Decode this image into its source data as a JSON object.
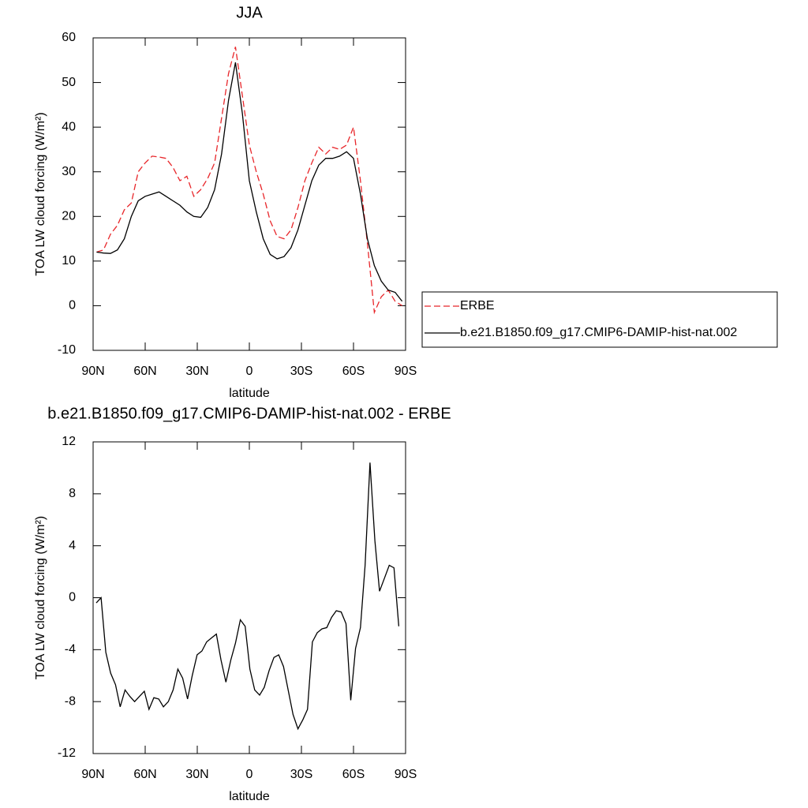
{
  "chart_data": [
    {
      "type": "line",
      "title": "JJA",
      "xlabel": "latitude",
      "ylabel": "TOA LW cloud forcing (W/m²)",
      "xlim": [
        90,
        -90
      ],
      "ylim": [
        -10,
        60
      ],
      "xticks": [
        {
          "value": 90,
          "label": "90N"
        },
        {
          "value": 60,
          "label": "60N"
        },
        {
          "value": 30,
          "label": "30N"
        },
        0,
        {
          "value": -30,
          "label": "30S"
        },
        {
          "value": -60,
          "label": "60S"
        },
        {
          "value": -90,
          "label": "90S"
        }
      ],
      "yticks": [
        -10,
        0,
        10,
        20,
        30,
        40,
        50,
        60
      ],
      "legend": "right",
      "x": [
        88,
        84,
        80,
        76,
        72,
        68,
        64,
        60,
        56,
        52,
        48,
        44,
        40,
        36,
        32,
        28,
        24,
        20,
        16,
        12,
        8,
        4,
        0,
        -4,
        -8,
        -12,
        -16,
        -20,
        -24,
        -28,
        -32,
        -36,
        -40,
        -44,
        -48,
        -52,
        -56,
        -60,
        -64,
        -68,
        -72,
        -76,
        -80,
        -84,
        -88
      ],
      "series": [
        {
          "name": "ERBE",
          "color": "#e8262a",
          "dash": "dashed",
          "values": [
            12,
            12.5,
            16,
            18,
            21.5,
            23,
            30,
            32,
            33.5,
            33.3,
            33,
            31,
            28,
            29,
            24.5,
            26,
            28.5,
            32,
            42,
            52,
            58,
            47,
            36,
            30,
            25,
            19,
            15.5,
            15,
            17,
            22,
            28,
            32,
            35.5,
            34,
            35.5,
            35,
            36,
            40,
            28,
            14,
            -1.5,
            2,
            3.5,
            1,
            0
          ]
        },
        {
          "name": "b.e21.B1850.f09_g17.CMIP6-DAMIP-hist-nat.002",
          "color": "#000000",
          "dash": "solid",
          "values": [
            12,
            11.8,
            11.7,
            12.5,
            15,
            20,
            23.5,
            24.5,
            25,
            25.5,
            24.5,
            23.5,
            22.5,
            21,
            20,
            19.8,
            22,
            26,
            34,
            46,
            54.5,
            43,
            28,
            21,
            15,
            11.5,
            10.5,
            11,
            13,
            17,
            22.5,
            28,
            31.5,
            33,
            33,
            33.5,
            34.5,
            33,
            25,
            15,
            9,
            5.5,
            3.5,
            3,
            1
          ]
        }
      ]
    },
    {
      "type": "line",
      "title": "b.e21.B1850.f09_g17.CMIP6-DAMIP-hist-nat.002 - ERBE",
      "xlabel": "latitude",
      "ylabel": "TOA LW cloud forcing (W/m²)",
      "xlim": [
        90,
        -90
      ],
      "ylim": [
        -12,
        12
      ],
      "xticks": [
        {
          "value": 90,
          "label": "90N"
        },
        {
          "value": 60,
          "label": "60N"
        },
        {
          "value": 30,
          "label": "30N"
        },
        0,
        {
          "value": -30,
          "label": "30S"
        },
        {
          "value": -60,
          "label": "60S"
        },
        {
          "value": -90,
          "label": "90S"
        }
      ],
      "yticks": [
        -12,
        -8,
        -4,
        0,
        4,
        8,
        12
      ],
      "x": [
        88.2,
        85.4,
        82.7,
        79.9,
        77.1,
        74.4,
        71.6,
        68.8,
        66.1,
        63.3,
        60.5,
        57.8,
        55.0,
        52.2,
        49.5,
        46.7,
        43.9,
        41.2,
        38.4,
        35.6,
        32.9,
        30.1,
        27.3,
        24.6,
        21.8,
        19.0,
        16.3,
        13.5,
        10.7,
        8.0,
        5.2,
        2.4,
        -0.3,
        -3.1,
        -5.9,
        -8.6,
        -11.4,
        -14.2,
        -16.9,
        -19.7,
        -22.5,
        -25.2,
        -28.0,
        -30.8,
        -33.5,
        -36.3,
        -39.1,
        -41.8,
        -44.6,
        -47.4,
        -50.1,
        -52.9,
        -55.7,
        -58.4,
        -61.2,
        -64.0,
        -66.7,
        -69.5,
        -72.3,
        -75.0,
        -77.8,
        -80.6,
        -83.3,
        -86.1
      ],
      "series": [
        {
          "color": "#000000",
          "dash": "solid",
          "values": [
            -0.4,
            0,
            -4.2,
            -5.8,
            -6.7,
            -8.4,
            -7.1,
            -7.6,
            -8,
            -7.6,
            -7.2,
            -8.6,
            -7.7,
            -7.8,
            -8.4,
            -8,
            -7.1,
            -5.5,
            -6.2,
            -7.8,
            -6,
            -4.4,
            -4.1,
            -3.4,
            -3.1,
            -2.8,
            -4.8,
            -6.5,
            -4.8,
            -3.5,
            -1.7,
            -2.2,
            -5.5,
            -7.1,
            -7.5,
            -6.9,
            -5.6,
            -4.6,
            -4.4,
            -5.3,
            -7.2,
            -9,
            -10.1,
            -9.4,
            -8.6,
            -3.4,
            -2.7,
            -2.4,
            -2.3,
            -1.5,
            -1,
            -1.1,
            -2,
            -7.9,
            -3.9,
            -2.3,
            2.5,
            10.4,
            4.4,
            0.5,
            1.5,
            2.5,
            2.3,
            -2.2
          ]
        }
      ]
    }
  ]
}
